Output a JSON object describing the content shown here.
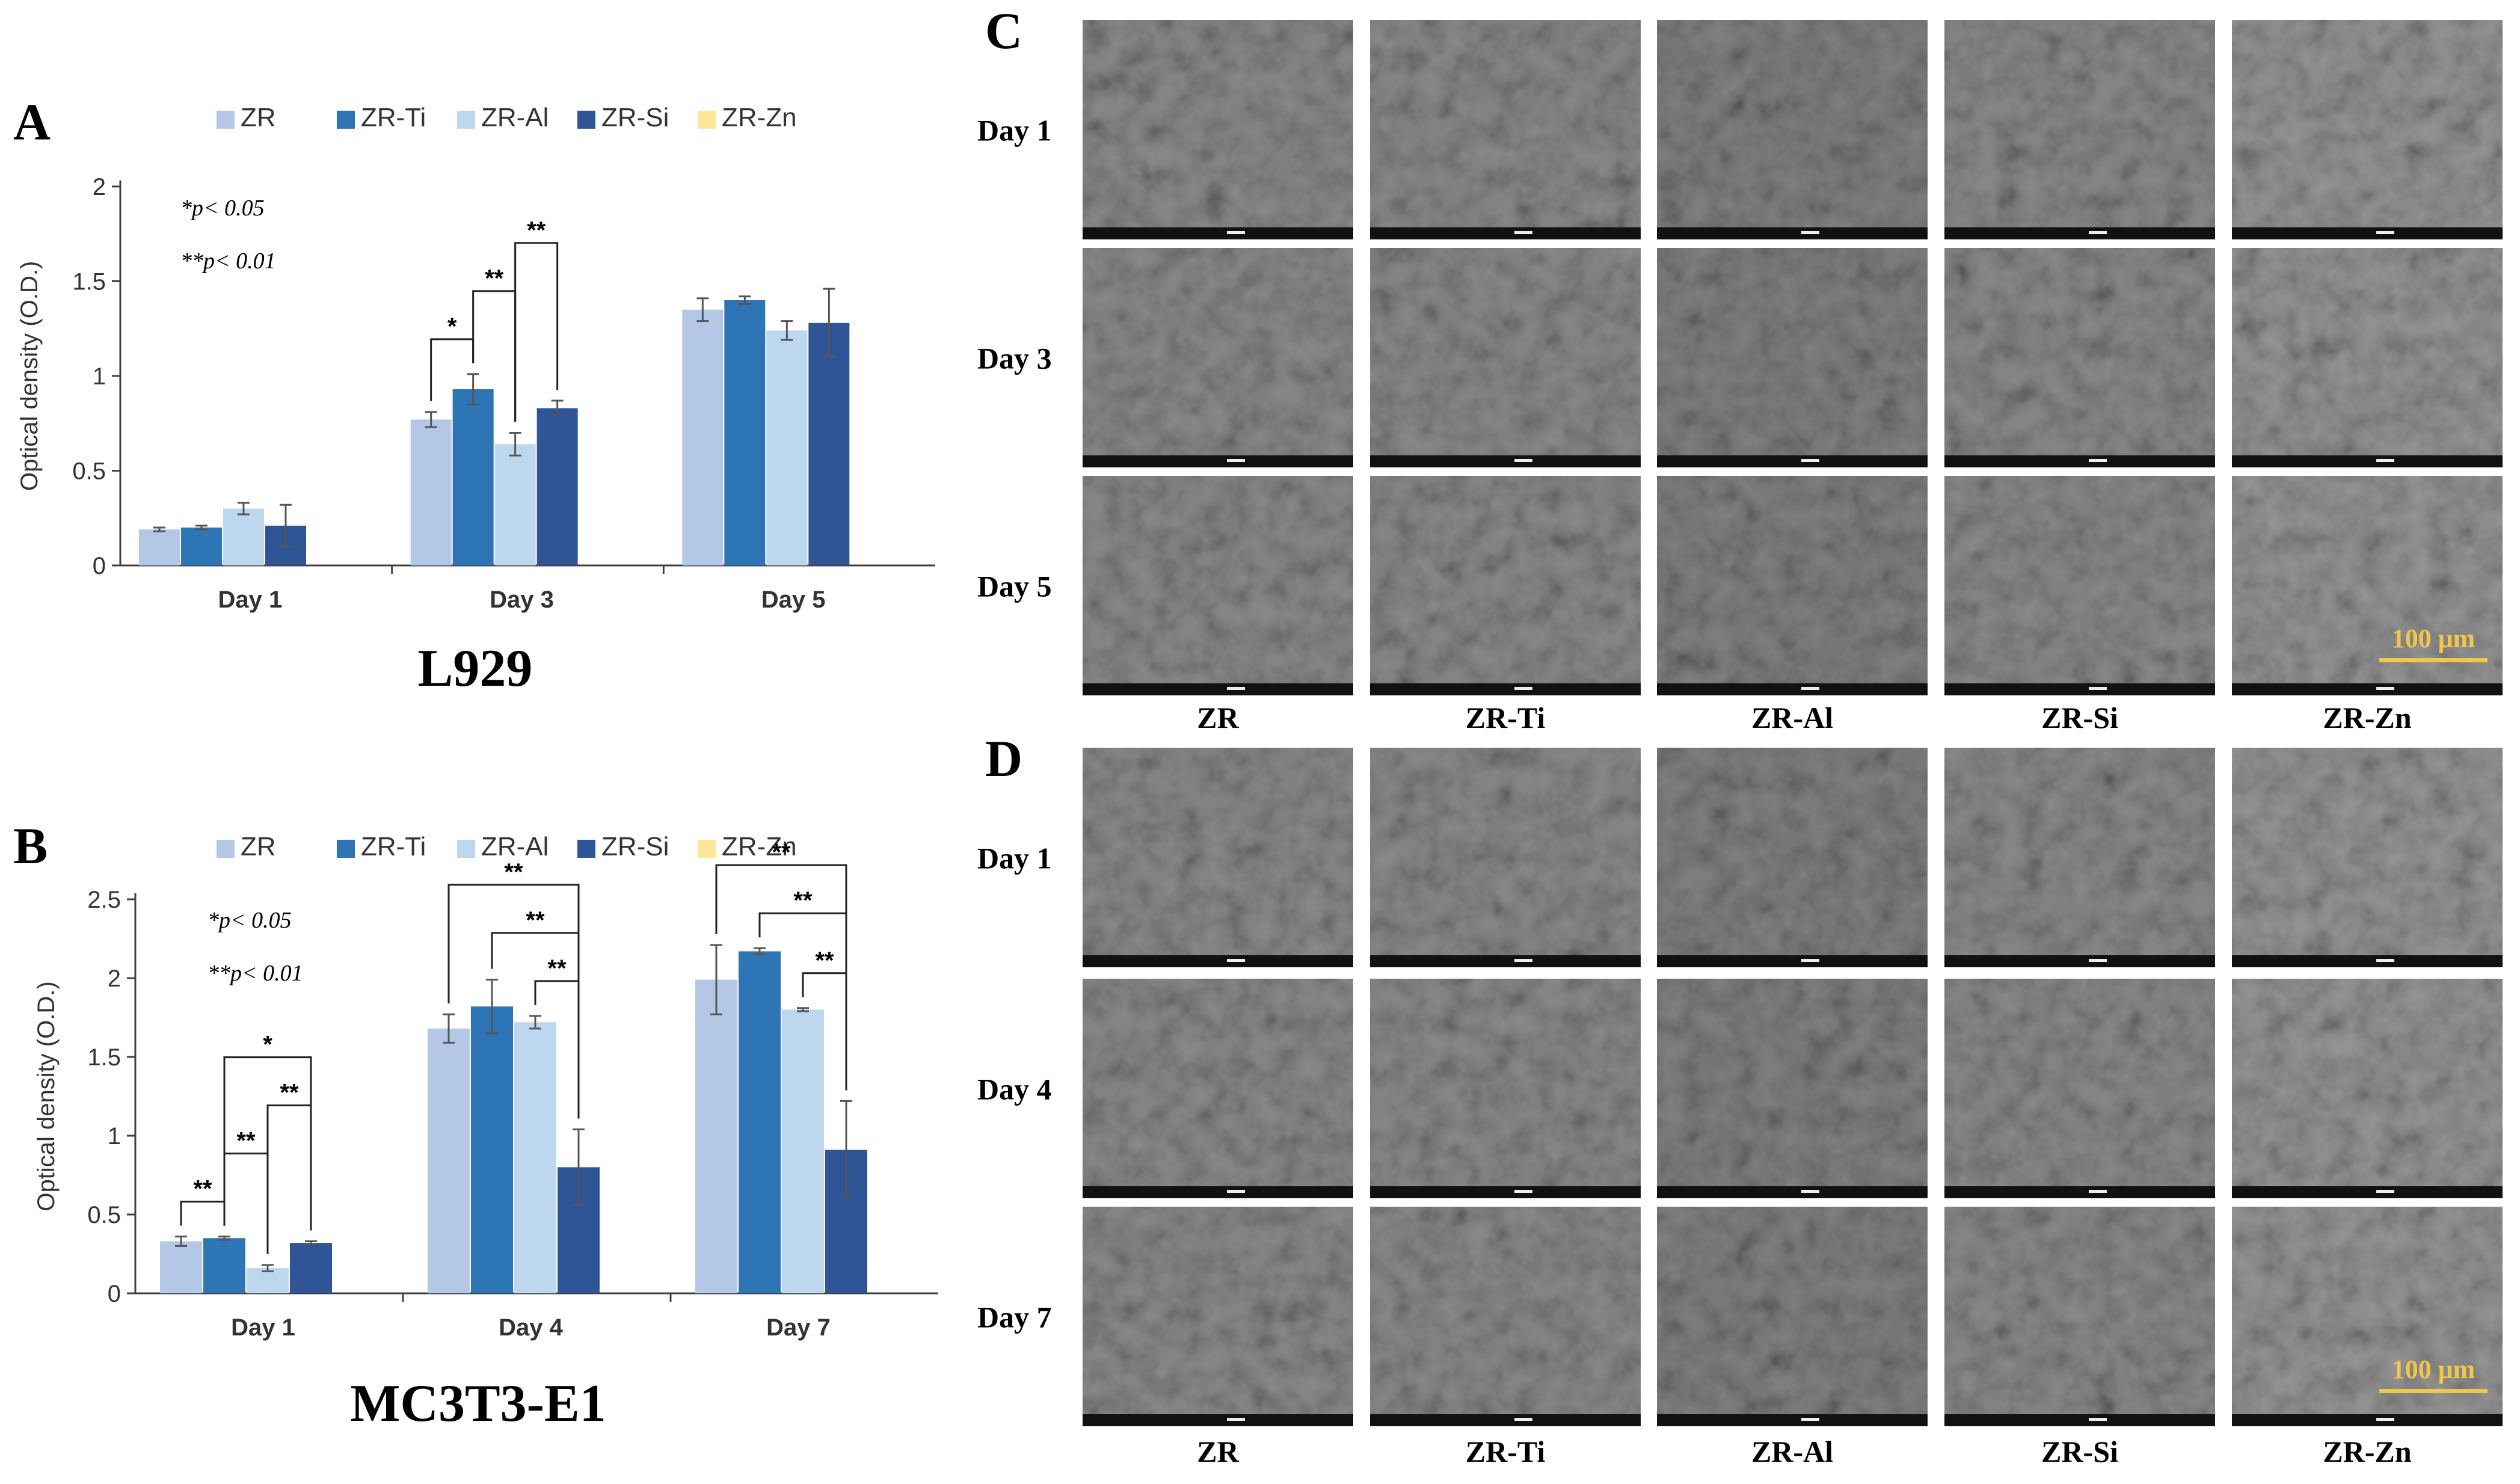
{
  "colors": {
    "ZR": "#b4c7e7",
    "ZR-Ti": "#2e75b6",
    "ZR-Al": "#bdd7ee",
    "ZR-Si": "#2f5597",
    "ZR-Zn": "#ffe699",
    "axis": "#404040",
    "sem_background": "#8a8a8a",
    "scalebar": "#f2c649"
  },
  "significance_legend": [
    "*p< 0.05",
    "**p< 0.01"
  ],
  "chart_data": [
    {
      "panel_label": "A",
      "type": "bar",
      "title": "L929",
      "ylabel": "Optical density (O.D.)",
      "xlabel": "",
      "ylim": [
        0,
        2
      ],
      "yticks": [
        "0",
        "0.5",
        "1",
        "1.5",
        "2"
      ],
      "categories": [
        "Day 1",
        "Day 3",
        "Day 5"
      ],
      "legend_position": "top",
      "series": [
        {
          "name": "ZR",
          "values": [
            0.19,
            0.77,
            1.35
          ],
          "errors": [
            0.01,
            0.04,
            0.06
          ]
        },
        {
          "name": "ZR-Ti",
          "values": [
            0.2,
            0.93,
            1.4
          ],
          "errors": [
            0.01,
            0.08,
            0.02
          ]
        },
        {
          "name": "ZR-Al",
          "values": [
            0.3,
            0.64,
            1.24
          ],
          "errors": [
            0.03,
            0.06,
            0.05
          ]
        },
        {
          "name": "ZR-Si",
          "values": [
            0.21,
            0.83,
            1.28
          ],
          "errors": [
            0.11,
            0.04,
            0.18
          ]
        },
        {
          "name": "ZR-Zn",
          "values": [
            0,
            0,
            0
          ],
          "errors": [
            0,
            0,
            0
          ]
        }
      ],
      "significance": [
        {
          "category": 1,
          "from": 0,
          "to": 1,
          "label": "*"
        },
        {
          "category": 1,
          "from": 1,
          "to": 2,
          "label": "**"
        },
        {
          "category": 1,
          "from": 2,
          "to": 3,
          "label": "**"
        }
      ]
    },
    {
      "panel_label": "B",
      "type": "bar",
      "title": "MC3T3-E1",
      "ylabel": "Optical density (O.D.)",
      "xlabel": "",
      "ylim": [
        0,
        2.5
      ],
      "yticks": [
        "0",
        "0.5",
        "1",
        "1.5",
        "2",
        "2.5"
      ],
      "categories": [
        "Day 1",
        "Day 4",
        "Day 7"
      ],
      "legend_position": "top",
      "series": [
        {
          "name": "ZR",
          "values": [
            0.33,
            1.68,
            1.99
          ],
          "errors": [
            0.03,
            0.09,
            0.22
          ]
        },
        {
          "name": "ZR-Ti",
          "values": [
            0.35,
            1.82,
            2.17
          ],
          "errors": [
            0.01,
            0.17,
            0.02
          ]
        },
        {
          "name": "ZR-Al",
          "values": [
            0.16,
            1.72,
            1.8
          ],
          "errors": [
            0.02,
            0.04,
            0.01
          ]
        },
        {
          "name": "ZR-Si",
          "values": [
            0.32,
            0.8,
            0.91
          ],
          "errors": [
            0.01,
            0.24,
            0.31
          ]
        },
        {
          "name": "ZR-Zn",
          "values": [
            0,
            0,
            0
          ],
          "errors": [
            0,
            0,
            0
          ]
        }
      ],
      "significance": [
        {
          "category": 0,
          "from": 0,
          "to": 1,
          "label": "**"
        },
        {
          "category": 0,
          "from": 1,
          "to": 2,
          "label": "**"
        },
        {
          "category": 0,
          "from": 1,
          "to": 3,
          "label": "*"
        },
        {
          "category": 0,
          "from": 2,
          "to": 3,
          "label": "**"
        },
        {
          "category": 1,
          "from": 0,
          "to": 3,
          "label": "**"
        },
        {
          "category": 1,
          "from": 1,
          "to": 3,
          "label": "**"
        },
        {
          "category": 1,
          "from": 2,
          "to": 3,
          "label": "**"
        },
        {
          "category": 2,
          "from": 0,
          "to": 3,
          "label": "**"
        },
        {
          "category": 2,
          "from": 1,
          "to": 3,
          "label": "**"
        },
        {
          "category": 2,
          "from": 2,
          "to": 3,
          "label": "**"
        }
      ]
    }
  ],
  "panel_C": {
    "label": "C",
    "rows": [
      "Day 1",
      "Day 3",
      "Day 5"
    ],
    "columns": [
      "ZR",
      "ZR-Ti",
      "ZR-Al",
      "ZR-Si",
      "ZR-Zn"
    ],
    "scale_bar": "100 μm"
  },
  "panel_D": {
    "label": "D",
    "rows": [
      "Day 1",
      "Day 4",
      "Day 7"
    ],
    "columns": [
      "ZR",
      "ZR-Ti",
      "ZR-Al",
      "ZR-Si",
      "ZR-Zn"
    ],
    "scale_bar": "100 μm"
  }
}
